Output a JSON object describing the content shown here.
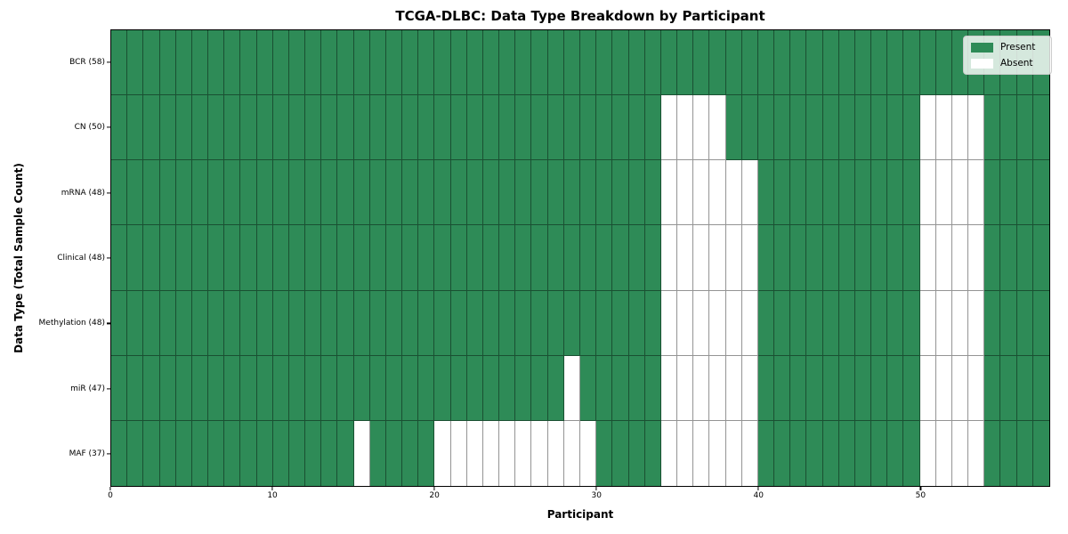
{
  "title": "TCGA-DLBC: Data Type Breakdown by Participant",
  "xlabel": "Participant",
  "ylabel": "Data Type (Total Sample Count)",
  "legend": {
    "present_label": "Present",
    "absent_label": "Absent"
  },
  "chart_data": {
    "type": "heatmap",
    "title": "TCGA-DLBC: Data Type Breakdown by Participant",
    "xlabel": "Participant",
    "ylabel": "Data Type (Total Sample Count)",
    "n_participants": 58,
    "x_range": [
      0,
      58
    ],
    "x_ticks": [
      0,
      10,
      20,
      30,
      40,
      50
    ],
    "grid": false,
    "legend_position": "upper right",
    "legend": [
      {
        "label": "Present",
        "state": "present",
        "color": "#2e8b57"
      },
      {
        "label": "Absent",
        "state": "absent",
        "color": "#ffffff"
      }
    ],
    "colors": {
      "present": "#2e8b57",
      "absent": "#ffffff",
      "cell_edge": "rgba(0,0,0,0.42)",
      "frame": "#000000",
      "legend_border": "#cccccc"
    },
    "rows": [
      {
        "label": "BCR (58)",
        "data_type": "BCR",
        "present_count": 58,
        "absent_participants": []
      },
      {
        "label": "CN (50)",
        "data_type": "CN",
        "present_count": 50,
        "absent_participants": [
          34,
          35,
          36,
          37,
          50,
          51,
          52,
          53
        ]
      },
      {
        "label": "mRNA (48)",
        "data_type": "mRNA",
        "present_count": 48,
        "absent_participants": [
          34,
          35,
          36,
          37,
          38,
          39,
          50,
          51,
          52,
          53
        ]
      },
      {
        "label": "Clinical (48)",
        "data_type": "Clinical",
        "present_count": 48,
        "absent_participants": [
          34,
          35,
          36,
          37,
          38,
          39,
          50,
          51,
          52,
          53
        ]
      },
      {
        "label": "Methylation (48)",
        "data_type": "Methylation",
        "present_count": 48,
        "absent_participants": [
          34,
          35,
          36,
          37,
          38,
          39,
          50,
          51,
          52,
          53
        ]
      },
      {
        "label": "miR (47)",
        "data_type": "miR",
        "present_count": 47,
        "absent_participants": [
          28,
          34,
          35,
          36,
          37,
          38,
          39,
          50,
          51,
          52,
          53
        ]
      },
      {
        "label": "MAF (37)",
        "data_type": "MAF",
        "present_count": 37,
        "absent_participants": [
          15,
          20,
          21,
          22,
          23,
          24,
          25,
          26,
          27,
          28,
          29,
          34,
          35,
          36,
          37,
          38,
          39,
          50,
          51,
          52,
          53
        ]
      }
    ]
  }
}
